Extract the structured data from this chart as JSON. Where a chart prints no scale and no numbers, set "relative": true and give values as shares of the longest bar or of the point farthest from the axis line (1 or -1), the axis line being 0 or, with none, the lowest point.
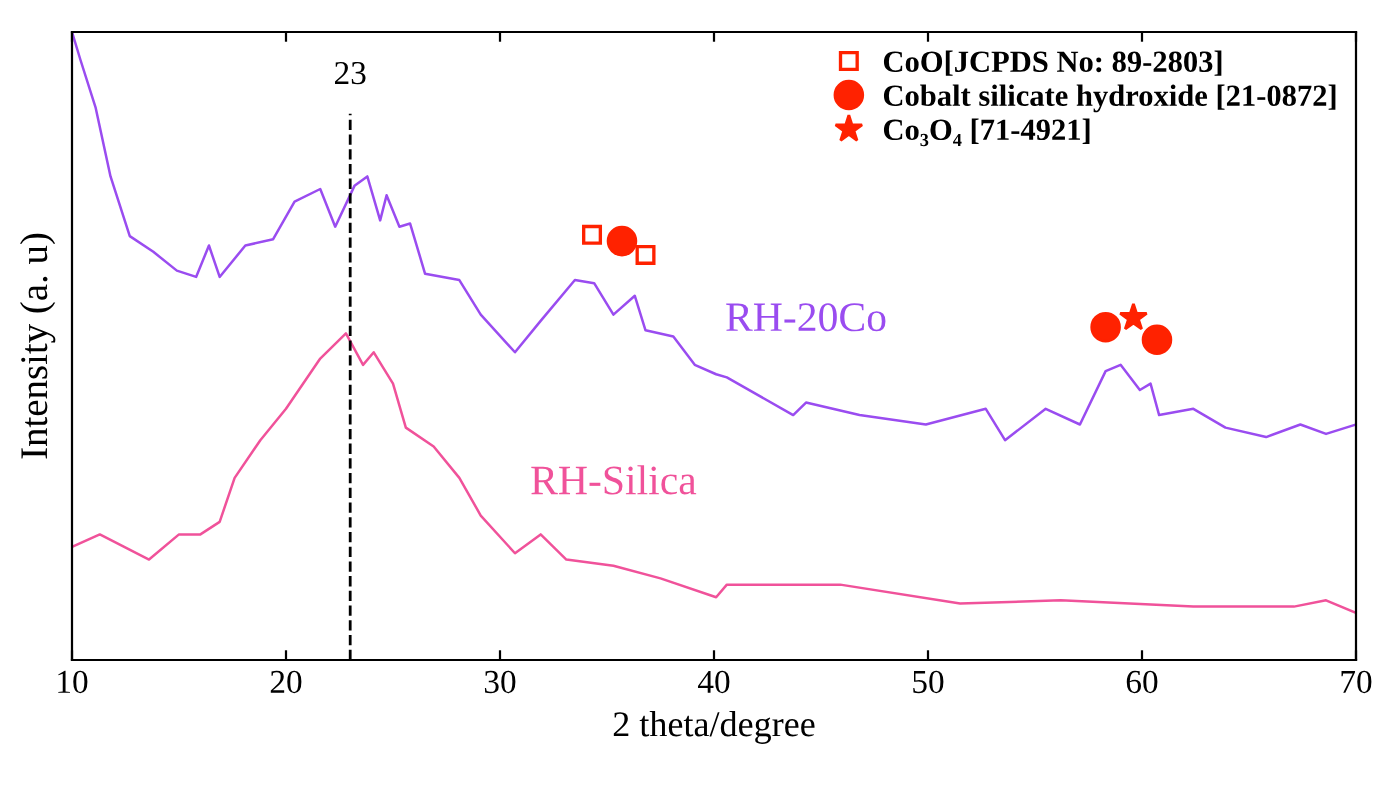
{
  "chart_data": {
    "type": "line",
    "relative": true,
    "xlabel": "2 theta/degree",
    "ylabel": "Intensity (a. u)",
    "xlim": [
      10,
      70
    ],
    "xticks": [
      10,
      20,
      30,
      40,
      50,
      60,
      70
    ],
    "grid": false,
    "legend": "top right",
    "line_style": "solid",
    "marker": "none",
    "ref_lines": [
      {
        "axis": "x",
        "value": 23,
        "label": "23",
        "line_style": "dashed",
        "color": "#000000"
      }
    ],
    "series": [
      {
        "name": "RH-20Co",
        "color": "#9a4cf0",
        "x": [
          10,
          10.4,
          11.1,
          11.8,
          12.7,
          13.8,
          14.9,
          15.8,
          16.4,
          16.9,
          18.1,
          19.4,
          20.4,
          21.6,
          22.3,
          23.2,
          23.8,
          24.4,
          24.7,
          25.3,
          25.8,
          26.5,
          28.1,
          29.1,
          30.7,
          31.9,
          33.5,
          34.4,
          35.3,
          36.3,
          36.8,
          38.1,
          39.1,
          40.1,
          40.6,
          43.7,
          44.3,
          46.8,
          49.9,
          52.7,
          53.6,
          55.5,
          57.1,
          58.3,
          59.0,
          59.9,
          60.4,
          60.8,
          62.4,
          63.9,
          65.8,
          67.4,
          68.6,
          70
        ],
        "values": [
          1.0,
          0.955,
          0.88,
          0.77,
          0.675,
          0.65,
          0.62,
          0.61,
          0.66,
          0.61,
          0.66,
          0.67,
          0.73,
          0.75,
          0.69,
          0.755,
          0.77,
          0.7,
          0.74,
          0.69,
          0.695,
          0.615,
          0.605,
          0.55,
          0.49,
          0.54,
          0.605,
          0.6,
          0.55,
          0.58,
          0.525,
          0.515,
          0.47,
          0.455,
          0.45,
          0.39,
          0.41,
          0.39,
          0.375,
          0.4,
          0.35,
          0.4,
          0.375,
          0.46,
          0.47,
          0.43,
          0.44,
          0.39,
          0.4,
          0.37,
          0.355,
          0.375,
          0.36,
          0.375
        ]
      },
      {
        "name": "RH-Silica",
        "color": "#f0529a",
        "x": [
          10,
          11.3,
          13.6,
          15.0,
          16.0,
          16.9,
          17.6,
          18.8,
          20.0,
          21.6,
          22.8,
          23.6,
          24.1,
          25.0,
          25.6,
          26.9,
          28.1,
          29.1,
          30.7,
          31.9,
          33.1,
          35.3,
          37.5,
          40.1,
          40.6,
          45.9,
          51.5,
          56.2,
          62.4,
          67.1,
          68.6,
          70
        ],
        "values": [
          0.18,
          0.2,
          0.16,
          0.2,
          0.2,
          0.22,
          0.29,
          0.35,
          0.4,
          0.48,
          0.52,
          0.47,
          0.49,
          0.44,
          0.37,
          0.34,
          0.29,
          0.23,
          0.17,
          0.2,
          0.16,
          0.15,
          0.13,
          0.1,
          0.12,
          0.12,
          0.09,
          0.095,
          0.085,
          0.085,
          0.095,
          0.075
        ]
      },
      {
        "name": "CoO[JCPDS No: 89-2803]",
        "type": "scatter",
        "marker": "square",
        "color": "#ff2200",
        "x": [
          34.3,
          36.8
        ],
        "values": [
          0.677,
          0.645
        ]
      },
      {
        "name": "Cobalt silicate hydroxide [21-0872]",
        "type": "scatter",
        "marker": "circle",
        "color": "#ff2200",
        "x": [
          35.7,
          58.3,
          60.7
        ],
        "values": [
          0.667,
          0.53,
          0.51
        ]
      },
      {
        "name": "Co₃O₄ [71-4921]",
        "type": "scatter",
        "marker": "star",
        "color": "#ff2200",
        "x": [
          59.6
        ],
        "values": [
          0.545
        ]
      }
    ]
  }
}
